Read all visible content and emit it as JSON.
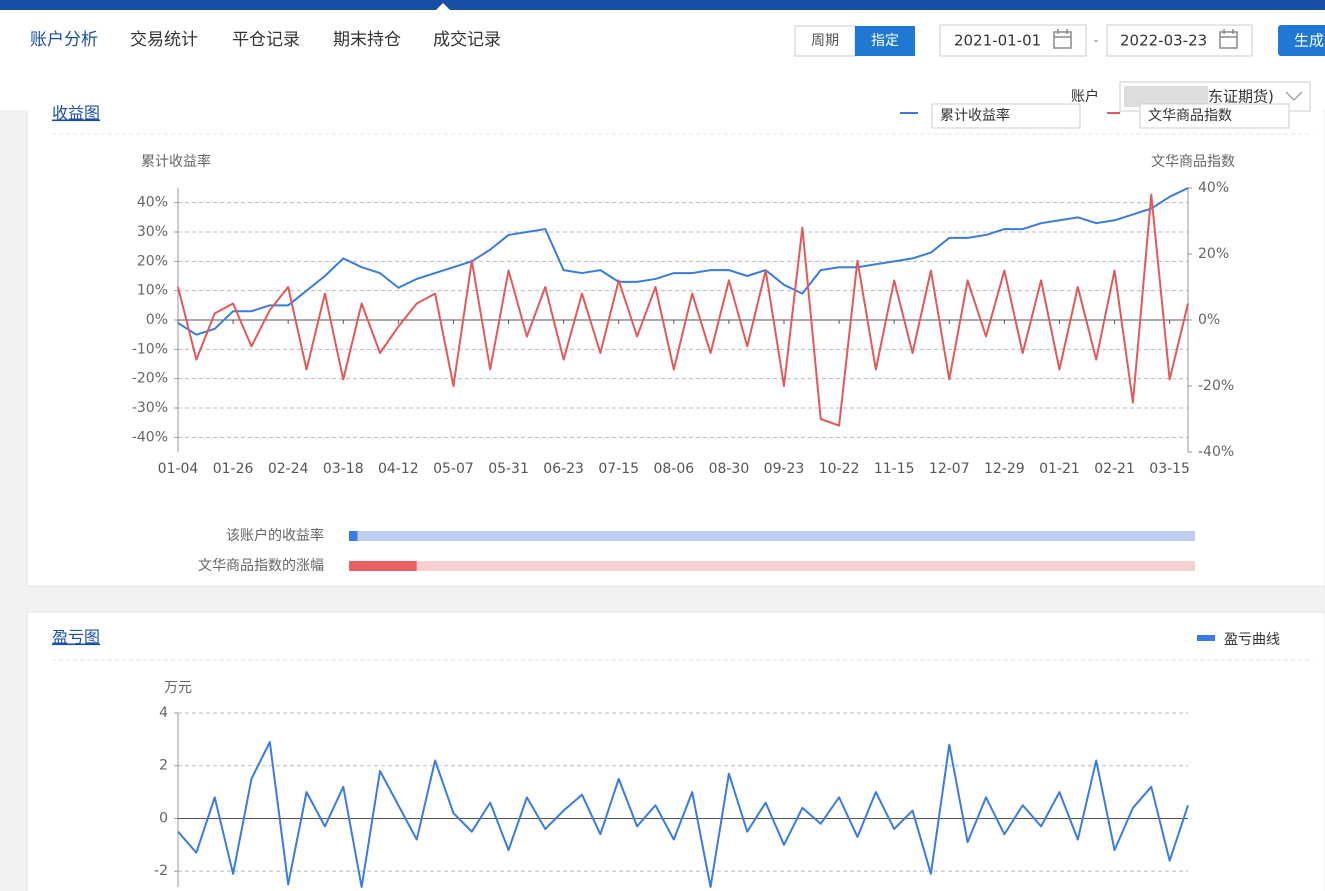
{
  "nav": {
    "tabs": [
      "账户分析",
      "交易统计",
      "平仓记录",
      "期末持仓",
      "成交记录"
    ],
    "period_buttons": [
      "周期",
      "指定"
    ],
    "start_date": "2021-01-01",
    "separator": "-",
    "end_date": "2022-03-23",
    "generate": "生成",
    "account_label": "账户",
    "account_value": "东证期货)"
  },
  "chart_data": [
    {
      "type": "line",
      "title": "收益图",
      "y_label": "累计收益率",
      "y2_label": "文华商品指数",
      "categories": [
        "01-04",
        null,
        null,
        "01-26",
        null,
        null,
        "02-24",
        null,
        null,
        "03-18",
        null,
        null,
        "04-12",
        null,
        null,
        "05-07",
        null,
        null,
        "05-31",
        null,
        null,
        "06-23",
        null,
        null,
        "07-15",
        null,
        null,
        "08-06",
        null,
        null,
        "08-30",
        null,
        null,
        "09-23",
        null,
        null,
        "10-22",
        null,
        null,
        "11-15",
        null,
        null,
        "12-07",
        null,
        null,
        "12-29",
        null,
        null,
        "01-21",
        null,
        null,
        "02-21",
        null,
        null,
        "03-15",
        null
      ],
      "series": [
        {
          "name": "累计收益率",
          "color": "#3a7be0",
          "values": [
            -1,
            -5,
            -3,
            3,
            3,
            5,
            5,
            10,
            15,
            21,
            18,
            16,
            11,
            14,
            16,
            18,
            20,
            24,
            29,
            30,
            31,
            17,
            16,
            17,
            13,
            13,
            14,
            16,
            16,
            17,
            17,
            15,
            17,
            12,
            9,
            17,
            18,
            18,
            19,
            20,
            21,
            23,
            28,
            28,
            29,
            31,
            31,
            33,
            34,
            35,
            33,
            34,
            36,
            38,
            42,
            45
          ]
        },
        {
          "name": "文华商品指数",
          "color": "#e05a5a",
          "axis": "y2",
          "values": [
            10,
            -12,
            2,
            5,
            -8,
            3,
            10,
            -15,
            8,
            -18,
            5,
            -10,
            -2,
            5,
            8,
            -20,
            18,
            -15,
            15,
            -5,
            10,
            -12,
            8,
            -10,
            12,
            -5,
            10,
            -15,
            8,
            -10,
            12,
            -8,
            15,
            -20,
            28,
            -30,
            -32,
            18,
            -15,
            12,
            -10,
            15,
            -18,
            12,
            -5,
            15,
            -10,
            12,
            -15,
            10,
            -12,
            15,
            -25,
            38,
            -18,
            5
          ]
        }
      ],
      "ylim": [
        -45,
        45
      ],
      "yticks": [
        {
          "value": -40,
          "label": "-40%"
        },
        {
          "value": -30,
          "label": "-30%"
        },
        {
          "value": -20,
          "label": "-20%"
        },
        {
          "value": -10,
          "label": "-10%"
        },
        {
          "value": 0,
          "label": "0%"
        },
        {
          "value": 10,
          "label": "10%"
        },
        {
          "value": 20,
          "label": "20%"
        },
        {
          "value": 30,
          "label": "30%"
        },
        {
          "value": 40,
          "label": "40%"
        }
      ],
      "y2lim": [
        -40,
        40
      ],
      "y2ticks": [
        {
          "value": -40,
          "label": "-40%"
        },
        {
          "value": -20,
          "label": "-20%"
        },
        {
          "value": 0,
          "label": "0%"
        },
        {
          "value": 20,
          "label": "20%"
        },
        {
          "value": 40,
          "label": "40%"
        }
      ],
      "grid": true
    },
    {
      "type": "line",
      "title": "盈亏图",
      "y_label": "万元",
      "categories": [
        null,
        null,
        null,
        null,
        null,
        null,
        null,
        null,
        null,
        null,
        null,
        null,
        null,
        null,
        null,
        null,
        null,
        null,
        null,
        null,
        null,
        null,
        null,
        null,
        null,
        null,
        null,
        null,
        null,
        null,
        null,
        null,
        null,
        null,
        null,
        null,
        null,
        null,
        null,
        null,
        null,
        null,
        null,
        null,
        null,
        null,
        null,
        null,
        null,
        null,
        null,
        null,
        null,
        null,
        null,
        null
      ],
      "series": [
        {
          "name": "盈亏曲线",
          "color": "#3a7be0",
          "values": [
            -0.5,
            -1.3,
            0.8,
            -2.1,
            1.5,
            2.9,
            -2.5,
            1.0,
            -0.3,
            1.2,
            -2.6,
            1.8,
            0.5,
            -0.8,
            2.2,
            0.2,
            -0.5,
            0.6,
            -1.2,
            0.8,
            -0.4,
            0.3,
            0.9,
            -0.6,
            1.5,
            -0.3,
            0.5,
            -0.8,
            1.0,
            -2.6,
            1.7,
            -0.5,
            0.6,
            -1.0,
            0.4,
            -0.2,
            0.8,
            -0.7,
            1.0,
            -0.4,
            0.3,
            -2.1,
            2.8,
            -0.9,
            0.8,
            -0.6,
            0.5,
            -0.3,
            1.0,
            -0.8,
            2.2,
            -1.2,
            0.4,
            1.2,
            -1.6,
            0.5
          ]
        }
      ],
      "ylim": [
        -2.6,
        4
      ],
      "yticks": [
        -2,
        0,
        2,
        4
      ],
      "grid": true
    }
  ],
  "comparison": {
    "xlim": [
      0,
      100
    ],
    "items": [
      {
        "label": "该账户的收益率",
        "value": 1,
        "color": "#3a7be0",
        "track_color": "#bccdee"
      },
      {
        "label": "文华商品指数的涨幅",
        "value": 8,
        "color": "#e86060",
        "track_color": "#f6d0d0"
      }
    ]
  }
}
